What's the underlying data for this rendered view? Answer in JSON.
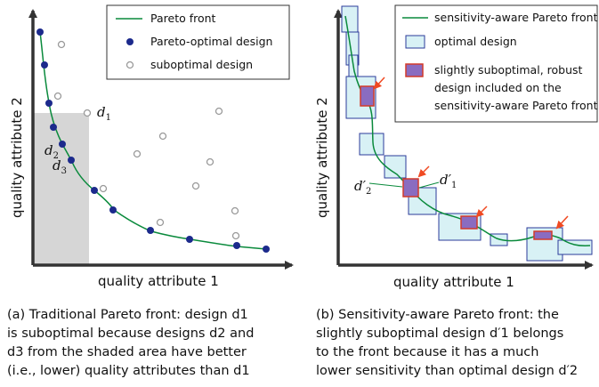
{
  "panel_a": {
    "legend": {
      "front": "Pareto front",
      "optimal": "Pareto-optimal design",
      "suboptimal": "suboptimal design"
    },
    "x_label": "quality attribute 1",
    "y_label": "quality attribute 2",
    "point_labels": {
      "d1": "d",
      "d1_sub": "1",
      "d2": "d",
      "d2_sub": "2",
      "d3": "d",
      "d3_sub": "3"
    },
    "caption": [
      "(a) Traditional Pareto front: design d1",
      "is suboptimal because designs d2 and",
      "d3 from the shaded area have better",
      "(i.e., lower) quality attributes than d1"
    ]
  },
  "panel_b": {
    "legend": {
      "front": "sensitivity-aware Pareto front",
      "optimal": "optimal design",
      "robust_line1": "slightly suboptimal, robust",
      "robust_line2": "design included on the",
      "robust_line3": "sensitivity-aware Pareto front"
    },
    "x_label": "quality attribute 1",
    "y_label": "quality attribute 2",
    "point_labels": {
      "d1p": "d′",
      "d1p_sub": "1",
      "d2p": "d′",
      "d2p_sub": "2"
    },
    "caption": [
      "(b) Sensitivity-aware Pareto front: the",
      "slightly suboptimal design d′1 belongs",
      "to the front because it has a much",
      "lower sensitivity than optimal design d′2"
    ]
  },
  "colors": {
    "front": "#0a8a3c",
    "optimal_dot": "#1c2a8c",
    "suboptimal_ring": "#9a9a9a",
    "shade": "#d6d6d6",
    "box_fill": "#d8f1f5",
    "box_stroke": "#2b3b9a",
    "robust_fill": "#8a6cc0",
    "robust_stroke": "#d33a2a",
    "arrow": "#f04a22"
  }
}
